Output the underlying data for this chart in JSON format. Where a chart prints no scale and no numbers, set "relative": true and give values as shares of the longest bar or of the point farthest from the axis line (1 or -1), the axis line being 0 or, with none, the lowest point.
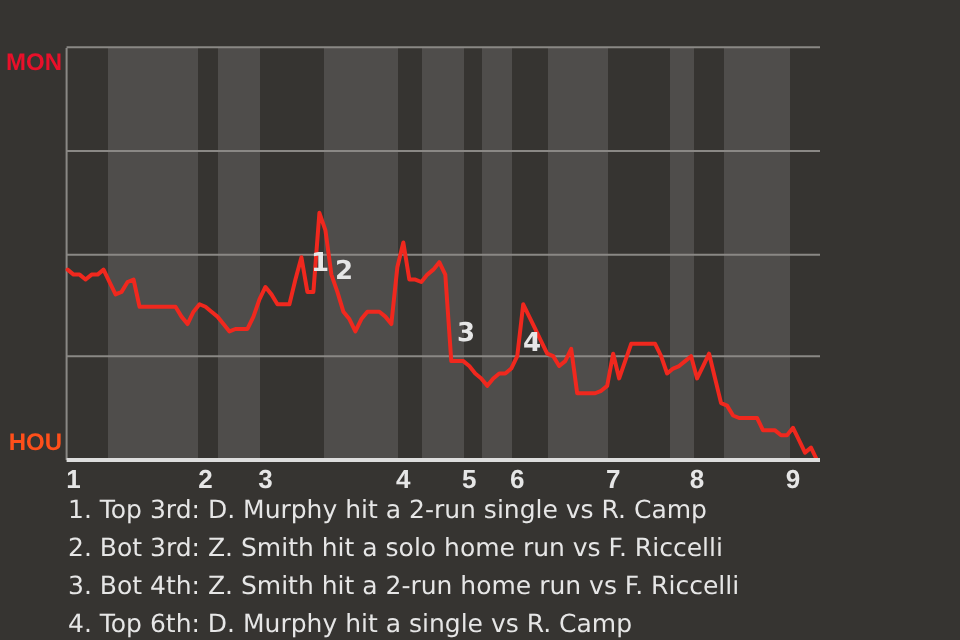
{
  "chart_data": {
    "type": "line",
    "relative": true,
    "categories": [
      null,
      "1",
      null,
      null,
      null,
      null,
      null,
      null,
      null,
      null,
      null,
      null,
      null,
      null,
      null,
      null,
      null,
      null,
      null,
      null,
      null,
      null,
      null,
      "2",
      null,
      null,
      null,
      null,
      null,
      null,
      null,
      null,
      null,
      "3",
      null,
      null,
      null,
      null,
      null,
      null,
      null,
      null,
      null,
      null,
      null,
      null,
      null,
      null,
      null,
      null,
      null,
      null,
      null,
      null,
      null,
      null,
      "4",
      null,
      null,
      null,
      null,
      null,
      null,
      null,
      null,
      null,
      null,
      "5",
      null,
      null,
      null,
      null,
      null,
      null,
      null,
      "6",
      null,
      null,
      null,
      null,
      null,
      null,
      null,
      null,
      null,
      null,
      null,
      null,
      null,
      null,
      null,
      "7",
      null,
      null,
      null,
      null,
      null,
      null,
      null,
      null,
      null,
      null,
      null,
      null,
      null,
      "8",
      null,
      null,
      null,
      null,
      null,
      null,
      null,
      null,
      null,
      null,
      null,
      null,
      null,
      null,
      null,
      "9",
      null,
      null,
      null,
      null
    ],
    "series": [
      {
        "color": "#f0281e",
        "values": [
          0.77,
          0.75,
          0.75,
          0.73,
          0.75,
          0.75,
          0.77,
          0.72,
          0.67,
          0.68,
          0.72,
          0.73,
          0.62,
          0.62,
          0.62,
          0.62,
          0.62,
          0.62,
          0.62,
          0.58,
          0.55,
          0.6,
          0.63,
          0.62,
          0.6,
          0.58,
          0.55,
          0.52,
          0.53,
          0.53,
          0.53,
          0.58,
          0.65,
          0.7,
          0.67,
          0.63,
          0.63,
          0.63,
          0.73,
          0.82,
          0.68,
          0.68,
          1,
          0.93,
          0.75,
          0.68,
          0.6,
          0.57,
          0.52,
          0.57,
          0.6,
          0.6,
          0.6,
          0.58,
          0.55,
          0.78,
          0.88,
          0.73,
          0.73,
          0.72,
          0.75,
          0.77,
          0.8,
          0.75,
          0.4,
          0.4,
          0.4,
          0.38,
          0.35,
          0.33,
          0.3,
          0.33,
          0.35,
          0.35,
          0.37,
          0.42,
          0.63,
          0.58,
          0.53,
          0.48,
          0.43,
          0.42,
          0.38,
          0.4,
          0.45,
          0.27,
          0.27,
          0.27,
          0.27,
          0.28,
          0.3,
          0.43,
          0.33,
          0.4,
          0.47,
          0.47,
          0.47,
          0.47,
          0.47,
          0.42,
          0.35,
          0.37,
          0.38,
          0.4,
          0.42,
          0.33,
          0.38,
          0.43,
          0.33,
          0.23,
          0.22,
          0.18,
          0.17,
          0.17,
          0.17,
          0.17,
          0.12,
          0.12,
          0.12,
          0.1,
          0.1,
          0.13,
          0.08,
          0.03,
          0.05,
          0
        ]
      }
    ],
    "ref_lines": [
      {
        "axis": "y",
        "value": 0.42,
        "color": "#8a8885"
      },
      {
        "axis": "y",
        "value": 0.83,
        "color": "#8a8885"
      },
      {
        "axis": "y",
        "value": 1.25,
        "color": "#8a8885"
      },
      {
        "axis": "y",
        "value": 1.67,
        "color": "#8a8885"
      }
    ],
    "annotations": [
      "MON",
      "HOU",
      "1",
      "2",
      "3",
      "4",
      "1. Top 3rd: D. Murphy hit a 2-run single vs R. Camp",
      "2. Bot 3rd: Z. Smith hit a solo home run vs F. Riccelli",
      "3. Bot 4th: Z. Smith hit a 2-run home run vs F. Riccelli",
      "4. Top 6th: D. Murphy hit a single vs R. Camp"
    ]
  }
}
